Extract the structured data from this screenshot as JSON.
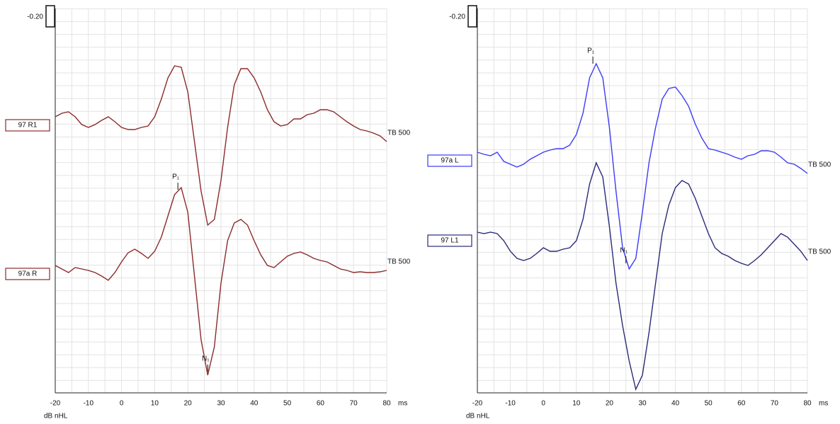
{
  "chart_data": [
    {
      "type": "line",
      "scale_label": "-0.20",
      "x_unit": "ms",
      "y_unit": "dB nHL",
      "x": [
        -20,
        -18,
        -16,
        -14,
        -12,
        -10,
        -8,
        -6,
        -4,
        -2,
        0,
        2,
        4,
        6,
        8,
        10,
        12,
        14,
        16,
        18,
        20,
        22,
        24,
        26,
        28,
        30,
        32,
        34,
        36,
        38,
        40,
        42,
        44,
        46,
        48,
        50,
        52,
        54,
        56,
        58,
        60,
        62,
        64,
        66,
        68,
        70,
        72,
        74,
        76,
        78,
        80
      ],
      "xlim": [
        -20,
        80
      ],
      "xticks": [
        -20,
        -10,
        0,
        10,
        20,
        30,
        40,
        50,
        60,
        70,
        80
      ],
      "ylim": [
        0,
        543
      ],
      "grid": true,
      "series": [
        {
          "name": "97 R1",
          "color": "#8b2b2b",
          "end_label": "TB 500",
          "values": [
            390,
            395,
            397,
            390,
            379,
            375,
            379,
            385,
            390,
            383,
            375,
            372,
            372,
            375,
            377,
            390,
            415,
            445,
            462,
            460,
            425,
            355,
            285,
            237,
            245,
            300,
            375,
            435,
            458,
            458,
            445,
            425,
            400,
            383,
            377,
            379,
            387,
            387,
            393,
            395,
            400,
            400,
            397,
            390,
            383,
            377,
            372,
            370,
            367,
            363,
            355
          ]
        },
        {
          "name": "97a R",
          "color": "#8b2b2b",
          "end_label": "TB 500",
          "values": [
            180,
            175,
            170,
            177,
            175,
            173,
            170,
            165,
            159,
            170,
            185,
            198,
            203,
            197,
            190,
            200,
            220,
            250,
            280,
            290,
            255,
            165,
            75,
            25,
            65,
            155,
            215,
            240,
            245,
            237,
            215,
            195,
            180,
            177,
            185,
            193,
            197,
            199,
            195,
            190,
            187,
            185,
            180,
            175,
            173,
            170,
            171,
            170,
            170,
            171,
            173
          ]
        }
      ],
      "annotations": [
        {
          "text": "P₁",
          "x": 17,
          "y": 287
        },
        {
          "text": "N₁",
          "x": 26,
          "y": 30
        }
      ]
    },
    {
      "type": "line",
      "scale_label": "-0.20",
      "x_unit": "ms",
      "y_unit": "dB nHL",
      "x": [
        -20,
        -18,
        -16,
        -14,
        -12,
        -10,
        -8,
        -6,
        -4,
        -2,
        0,
        2,
        4,
        6,
        8,
        10,
        12,
        14,
        16,
        18,
        20,
        22,
        24,
        26,
        28,
        30,
        32,
        34,
        36,
        38,
        40,
        42,
        44,
        46,
        48,
        50,
        52,
        54,
        56,
        58,
        60,
        62,
        64,
        66,
        68,
        70,
        72,
        74,
        76,
        78,
        80
      ],
      "xlim": [
        -20,
        80
      ],
      "xticks": [
        -20,
        -10,
        0,
        10,
        20,
        30,
        40,
        50,
        60,
        70,
        80
      ],
      "ylim": [
        0,
        543
      ],
      "grid": true,
      "series": [
        {
          "name": "97a L",
          "color": "#3b3bf5",
          "end_label": "TB 500",
          "values": [
            340,
            337,
            335,
            340,
            327,
            323,
            319,
            323,
            330,
            335,
            340,
            343,
            345,
            345,
            350,
            365,
            395,
            445,
            465,
            445,
            375,
            285,
            205,
            175,
            190,
            255,
            325,
            375,
            415,
            430,
            432,
            420,
            405,
            380,
            360,
            345,
            343,
            340,
            337,
            333,
            330,
            335,
            337,
            342,
            342,
            340,
            333,
            325,
            323,
            317,
            310
          ]
        },
        {
          "name": "97 L1",
          "color": "#2a2a78",
          "end_label": "TB 500",
          "values": [
            227,
            225,
            227,
            225,
            215,
            200,
            190,
            187,
            190,
            197,
            205,
            200,
            200,
            203,
            205,
            215,
            245,
            295,
            325,
            305,
            235,
            155,
            95,
            45,
            5,
            25,
            85,
            155,
            225,
            265,
            290,
            300,
            295,
            275,
            250,
            225,
            205,
            197,
            193,
            187,
            183,
            180,
            187,
            195,
            205,
            215,
            225,
            220,
            210,
            200,
            187
          ]
        }
      ],
      "annotations": [
        {
          "text": "P₁",
          "x": 15,
          "y": 465
        },
        {
          "text": "N₁",
          "x": 25,
          "y": 183
        }
      ]
    }
  ]
}
